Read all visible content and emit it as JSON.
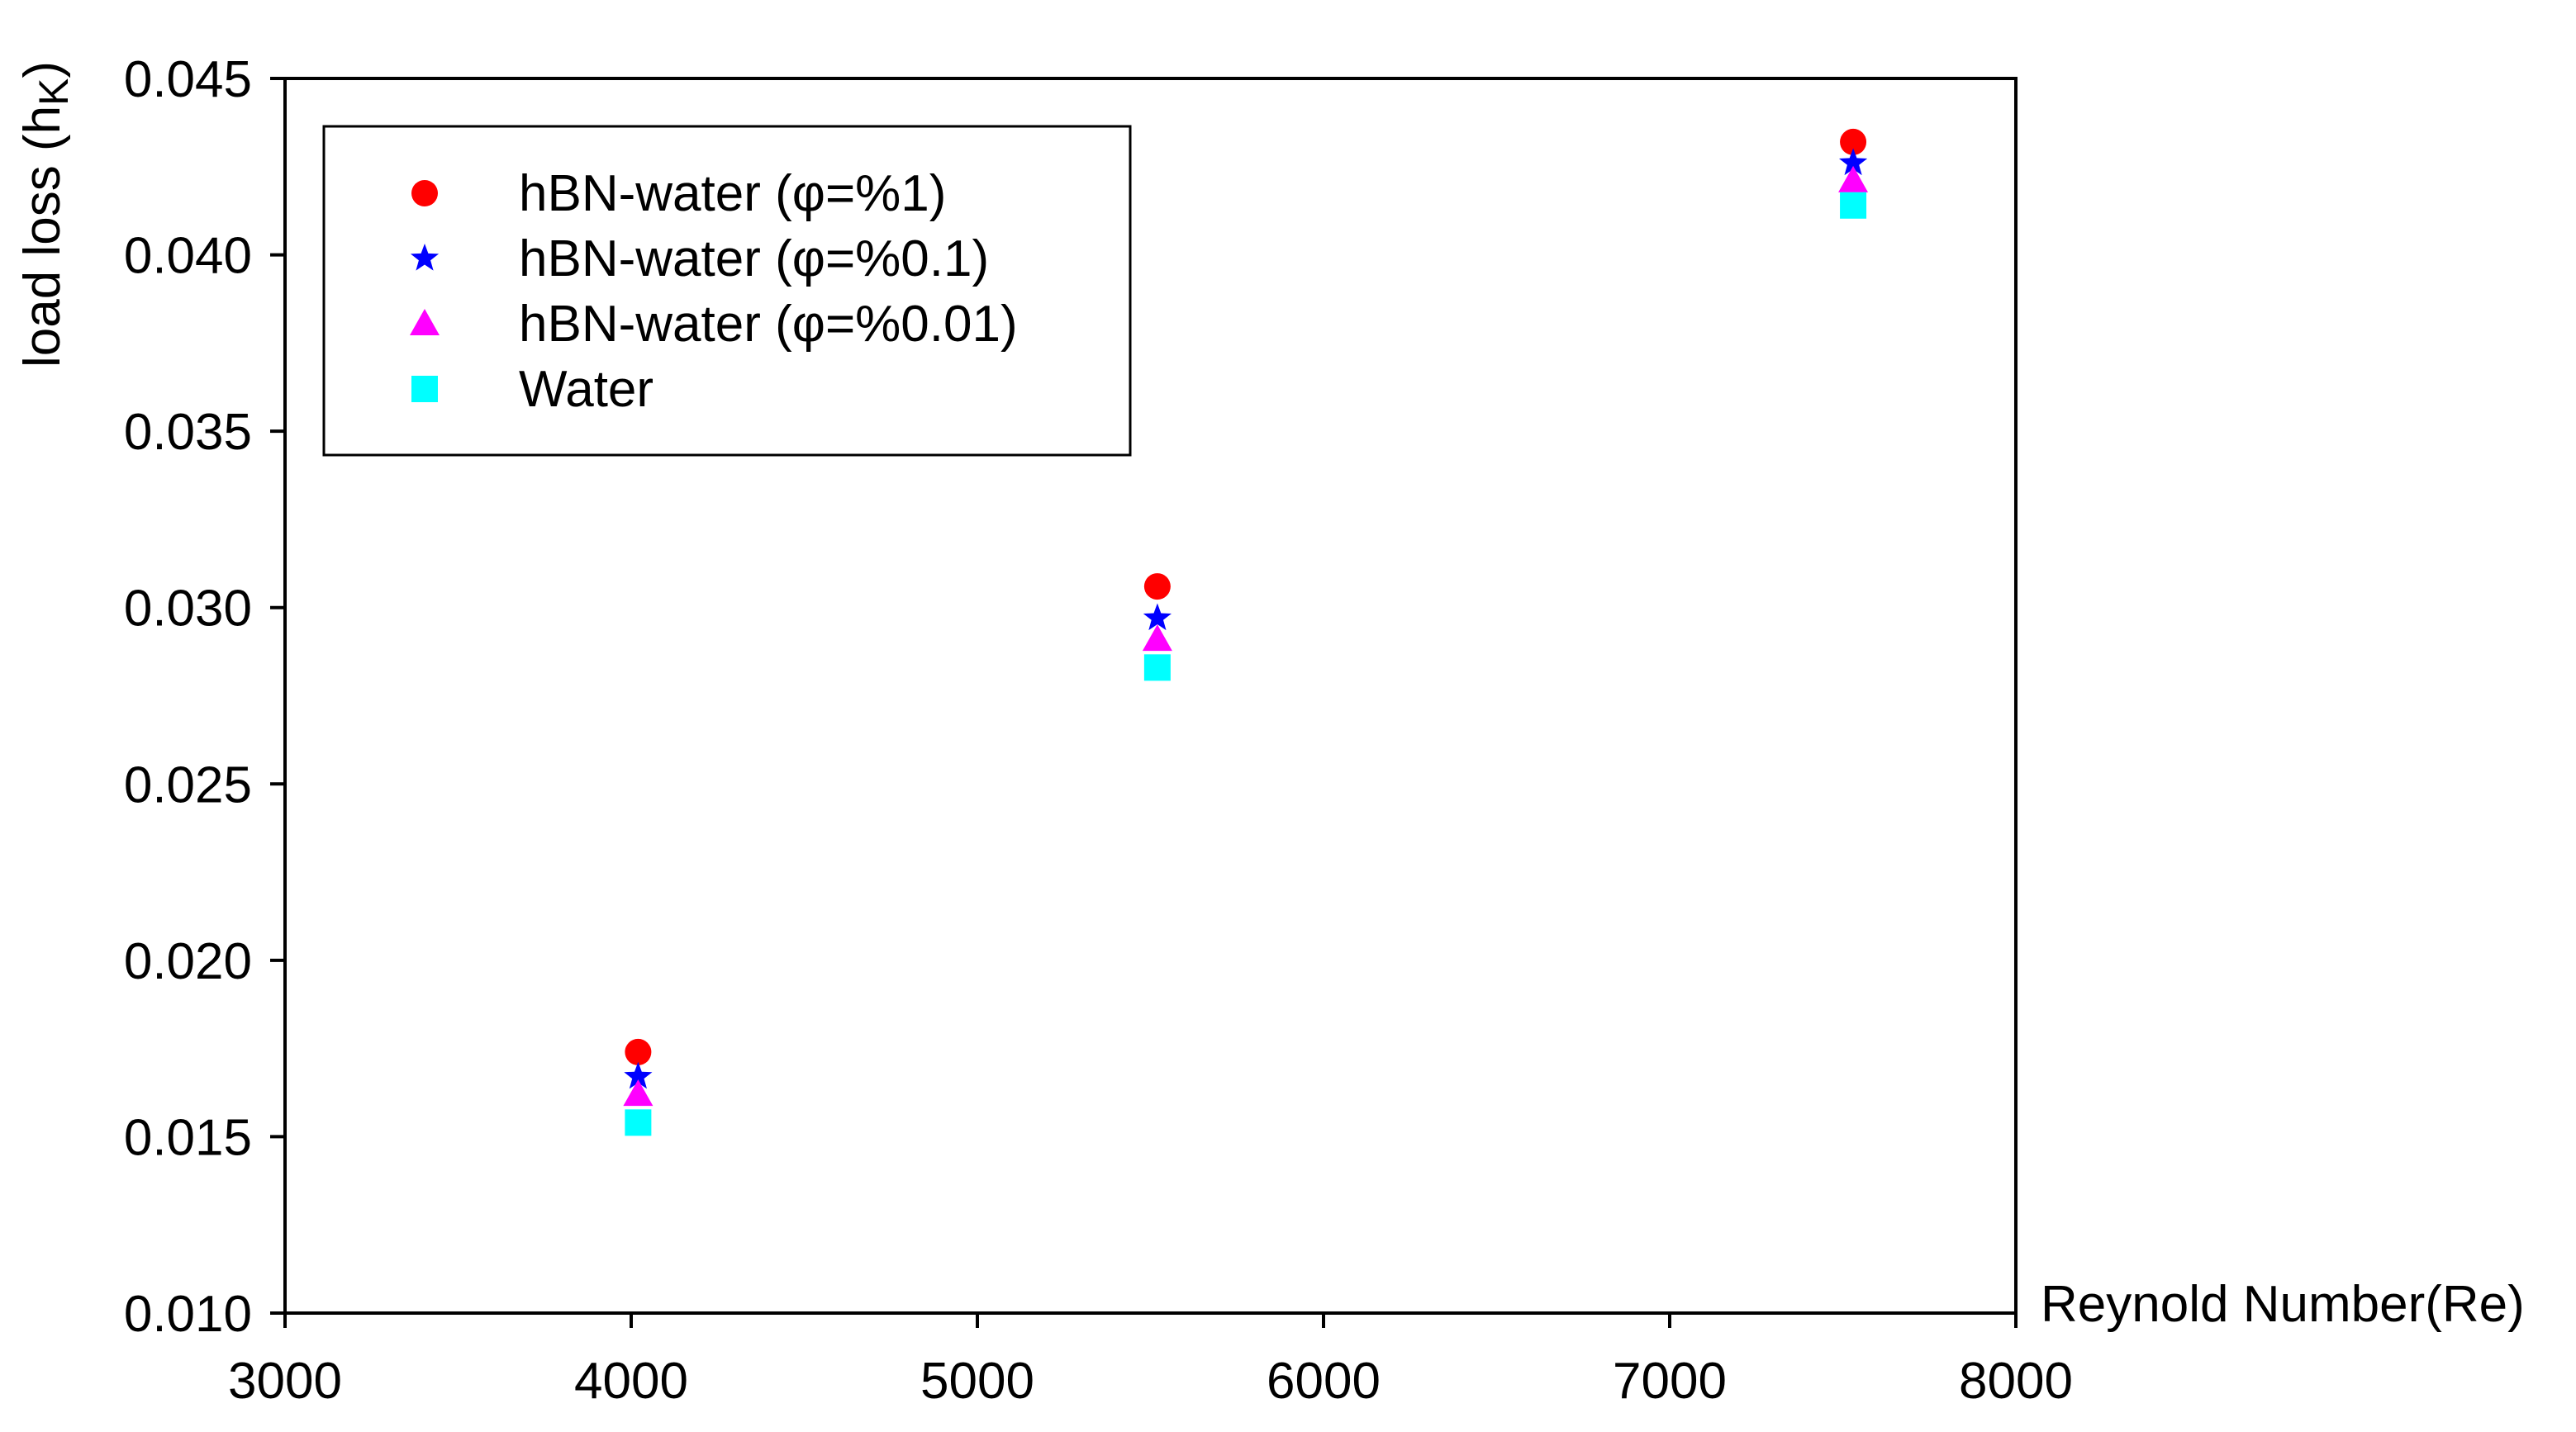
{
  "chart_data": {
    "type": "scatter",
    "title": "",
    "xlabel": "Reynold Number(Re)",
    "ylabel": "load loss (hK)",
    "ylabel_main": "load loss (h",
    "ylabel_sub": "K",
    "ylabel_close": ")",
    "xlim": [
      3000,
      8000
    ],
    "ylim": [
      0.01,
      0.045
    ],
    "xticks": [
      "3000",
      "4000",
      "5000",
      "6000",
      "7000",
      "8000"
    ],
    "yticks": [
      "0.010",
      "0.015",
      "0.020",
      "0.025",
      "0.030",
      "0.035",
      "0.040",
      "0.045"
    ],
    "grid": false,
    "legend_position": "top-left",
    "series": [
      {
        "name": "hBN-water (φ=%1)",
        "marker": "circle",
        "color": "#ff0000",
        "x": [
          4020,
          5520,
          7530
        ],
        "y": [
          0.0174,
          0.0306,
          0.0432
        ]
      },
      {
        "name": "hBN-water (φ=%0.1)",
        "marker": "star",
        "color": "#0000ff",
        "x": [
          4020,
          5520,
          7530
        ],
        "y": [
          0.0167,
          0.0297,
          0.0426
        ]
      },
      {
        "name": "hBN-water (φ=%0.01)",
        "marker": "triangle",
        "color": "#ff00ff",
        "x": [
          4020,
          5520,
          7530
        ],
        "y": [
          0.0162,
          0.0291,
          0.0421
        ]
      },
      {
        "name": "Water",
        "marker": "square",
        "color": "#00ffff",
        "x": [
          4020,
          5520,
          7530
        ],
        "y": [
          0.0154,
          0.0283,
          0.0414
        ]
      }
    ]
  }
}
